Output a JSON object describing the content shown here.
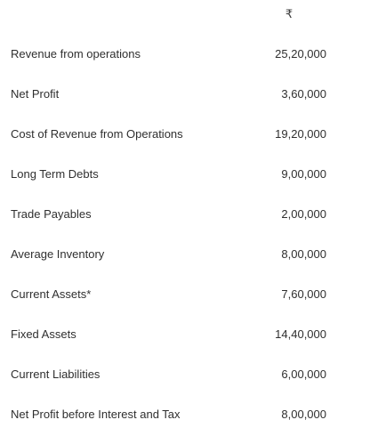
{
  "header": {
    "currency_symbol": "₹"
  },
  "rows": [
    {
      "label": "Revenue from operations",
      "value": "25,20,000"
    },
    {
      "label": "Net Profit",
      "value": "3,60,000"
    },
    {
      "label": "Cost of Revenue from Operations",
      "value": "19,20,000"
    },
    {
      "label": "Long Term Debts",
      "value": "9,00,000"
    },
    {
      "label": "Trade Payables",
      "value": "2,00,000"
    },
    {
      "label": "Average Inventory",
      "value": "8,00,000"
    },
    {
      "label": "Current Assets*",
      "value": "7,60,000"
    },
    {
      "label": "Fixed Assets",
      "value": "14,40,000"
    },
    {
      "label": "Current Liabilities",
      "value": "6,00,000"
    },
    {
      "label": "Net Profit before Interest and Tax",
      "value": "8,00,000"
    }
  ]
}
